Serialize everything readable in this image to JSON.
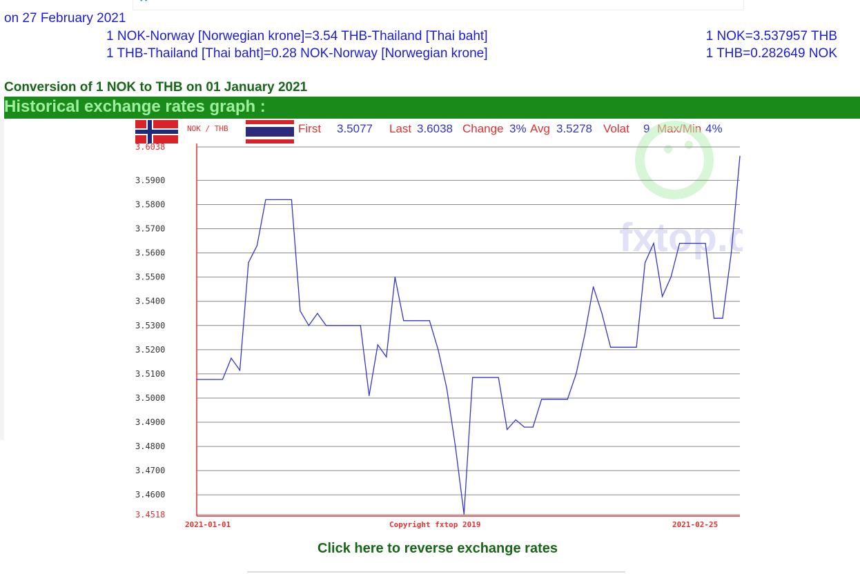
{
  "header": {
    "collapse_icon": "chevron-up-icon",
    "date_line": "on 27 February 2021",
    "rows": [
      {
        "left": "1 NOK-Norway [Norwegian krone]=3.54 THB-Thailand [Thai baht]",
        "right": "1 NOK=3.537957 THB"
      },
      {
        "left": "1 THB-Thailand [Thai baht]=0.28 NOK-Norway [Norwegian krone]",
        "right": "1 THB=0.282649 NOK"
      }
    ],
    "conversion_heading": "Conversion of 1 NOK to THB on 01 January 2021",
    "historical_title": "Historical exchange rates graph :"
  },
  "colors": {
    "link_blue": "#1a1adb",
    "green_bar": "#1a8a1a",
    "green_text": "#176617",
    "chart_line": "#3333cc",
    "axis_red": "#e03030"
  },
  "chart_data": {
    "type": "line",
    "pair_label": "NOK / THB",
    "stats": [
      {
        "label": "First",
        "value": "3.5077"
      },
      {
        "label": "Last",
        "value": "3.6038"
      },
      {
        "label": "Change",
        "value": "3%"
      },
      {
        "label": "Avg",
        "value": "3.5278"
      },
      {
        "label": "Volat",
        "value": "9"
      },
      {
        "label": "Max/Min",
        "value": "4%"
      }
    ],
    "ylim": [
      3.4518,
      3.6038
    ],
    "yticks": [
      "3.6038",
      "3.5900",
      "3.5800",
      "3.5700",
      "3.5600",
      "3.5500",
      "3.5400",
      "3.5300",
      "3.5200",
      "3.5100",
      "3.5000",
      "3.4900",
      "3.4800",
      "3.4700",
      "3.4600",
      "3.4518"
    ],
    "xlabels": {
      "start": "2021-01-01",
      "middle": "Copyright fxtop 2019",
      "end": "2021-02-25"
    },
    "watermark": "fxtop.com",
    "series": [
      {
        "values": [
          3.5077,
          3.5077,
          3.5077,
          3.5077,
          3.5165,
          3.5115,
          3.556,
          3.563,
          3.582,
          3.582,
          3.582,
          3.582,
          3.536,
          3.53,
          3.535,
          3.53,
          3.53,
          3.53,
          3.53,
          3.53,
          3.501,
          3.522,
          3.517,
          3.55,
          3.532,
          3.532,
          3.532,
          3.532,
          3.52,
          3.504,
          3.48,
          3.452,
          3.5085,
          3.5085,
          3.5085,
          3.5085,
          3.487,
          3.491,
          3.488,
          3.488,
          3.4995,
          3.4995,
          3.4995,
          3.4995,
          3.51,
          3.526,
          3.546,
          3.535,
          3.521,
          3.521,
          3.521,
          3.521,
          3.556,
          3.564,
          3.542,
          3.55,
          3.564,
          3.564,
          3.564,
          3.564,
          3.533,
          3.533,
          3.56,
          3.6
        ]
      }
    ]
  },
  "footer": {
    "reverse_link": "Click here to reverse exchange rates"
  }
}
